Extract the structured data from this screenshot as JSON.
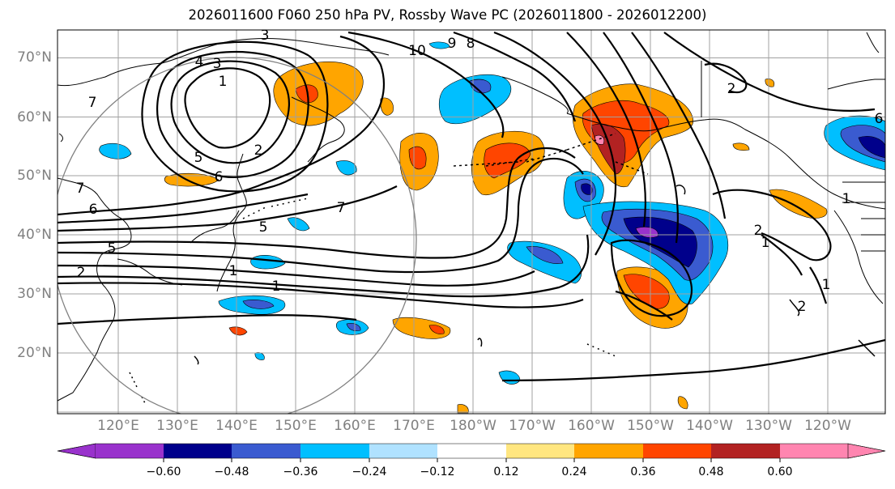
{
  "title": "2026011600 F060 250 hPa PV, Rossby Wave PC (2026011800 - 2026012200)",
  "map": {
    "projection": "equirectangular",
    "lon_range": [
      "112°E",
      "248°E"
    ],
    "lat_range": [
      10,
      75
    ],
    "gridlines": true
  },
  "lat_labels": [
    "70°N",
    "60°N",
    "50°N",
    "40°N",
    "30°N",
    "20°N"
  ],
  "lon_labels": [
    "120°E",
    "130°E",
    "140°E",
    "150°E",
    "160°E",
    "170°E",
    "180°W",
    "170°W",
    "160°W",
    "150°W",
    "140°W",
    "130°W",
    "120°W"
  ],
  "contour_labels": [
    "3",
    "4",
    "3",
    "1",
    "2",
    "5",
    "6",
    "7",
    "7",
    "6",
    "5",
    "7",
    "5",
    "2",
    "1",
    "1",
    "10",
    "9",
    "8",
    "2",
    "2",
    "1",
    "2",
    "1",
    "1",
    "6"
  ],
  "colorbar": {
    "ticks": [
      "−0.60",
      "−0.48",
      "−0.36",
      "−0.24",
      "−0.12",
      "0.12",
      "0.24",
      "0.36",
      "0.48",
      "0.60"
    ],
    "colors": [
      "#9932cc",
      "#00008b",
      "#3a5bd0",
      "#00bfff",
      "#b0e2ff",
      "#ffffff",
      "#ffe680",
      "#ffa500",
      "#ff4500",
      "#b22222",
      "#ff85b0"
    ]
  }
}
